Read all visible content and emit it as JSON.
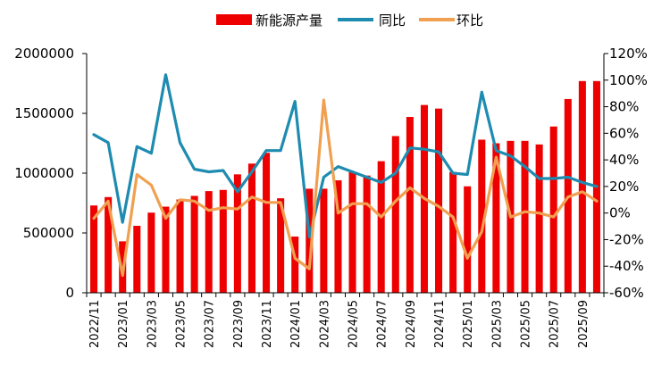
{
  "chart_data": {
    "type": "bar+line",
    "legend_position": "top",
    "grid": false,
    "colors": {
      "bar": "#ee0000",
      "yoy": "#1e8bb0",
      "mom": "#f0a050",
      "axis": "#000000"
    },
    "x": [
      "2022/11",
      "2022/12",
      "2023/01",
      "2023/02",
      "2023/03",
      "2023/04",
      "2023/05",
      "2023/06",
      "2023/07",
      "2023/08",
      "2023/09",
      "2023/10",
      "2023/11",
      "2023/12",
      "2024/01",
      "2024/02",
      "2024/03",
      "2024/04",
      "2024/05",
      "2024/06",
      "2024/07",
      "2024/08",
      "2024/09",
      "2024/10",
      "2024/11",
      "2024/12",
      "2025/01",
      "2025/02",
      "2025/03",
      "2025/04",
      "2025/05",
      "2025/06",
      "2025/07",
      "2025/08",
      "2025/09",
      "2025/10"
    ],
    "x_tick_labels": [
      "2022/11",
      "2023/01",
      "2023/03",
      "2023/05",
      "2023/07",
      "2023/09",
      "2023/11",
      "2024/01",
      "2024/03",
      "2024/05",
      "2024/07",
      "2024/09",
      "2024/11",
      "2025/01",
      "2025/03",
      "2025/05",
      "2025/07",
      "2025/09"
    ],
    "left_axis": {
      "ylim": [
        0,
        2000000
      ],
      "ticks": [
        "0",
        "500000",
        "1000000",
        "1500000",
        "2000000"
      ]
    },
    "right_axis": {
      "ylim": [
        -60,
        120
      ],
      "ticks": [
        "-60%",
        "-40%",
        "-20%",
        "0%",
        "20%",
        "40%",
        "60%",
        "80%",
        "100%",
        "120%"
      ]
    },
    "series": [
      {
        "name": "新能源产量",
        "type": "bar",
        "axis": "left",
        "values": [
          730000,
          800000,
          430000,
          560000,
          670000,
          720000,
          780000,
          810000,
          850000,
          860000,
          990000,
          1080000,
          1170000,
          790000,
          470000,
          870000,
          870000,
          940000,
          1010000,
          980000,
          1100000,
          1310000,
          1470000,
          1570000,
          1540000,
          1010000,
          890000,
          1280000,
          1250000,
          1270000,
          1270000,
          1240000,
          1390000,
          1620000,
          1770000,
          1770000
        ]
      },
      {
        "name": "同比",
        "type": "line",
        "axis": "right",
        "values": [
          59,
          53,
          -7,
          50,
          45,
          104,
          53,
          33,
          31,
          32,
          16,
          31,
          47,
          47,
          84,
          -18,
          27,
          35,
          31,
          27,
          23,
          30,
          49,
          48,
          46,
          30,
          29,
          91,
          47,
          43,
          35,
          26,
          26,
          27,
          23,
          20
        ]
      },
      {
        "name": "环比",
        "type": "line",
        "axis": "right",
        "values": [
          -4,
          9,
          -47,
          29,
          21,
          -4,
          10,
          9,
          2,
          4,
          3,
          12,
          8,
          8,
          -34,
          -42,
          85,
          0,
          7,
          7,
          -3,
          9,
          19,
          11,
          5,
          -3,
          -34,
          -14,
          42,
          -3,
          1,
          0,
          -3,
          12,
          16,
          9
        ]
      }
    ]
  }
}
